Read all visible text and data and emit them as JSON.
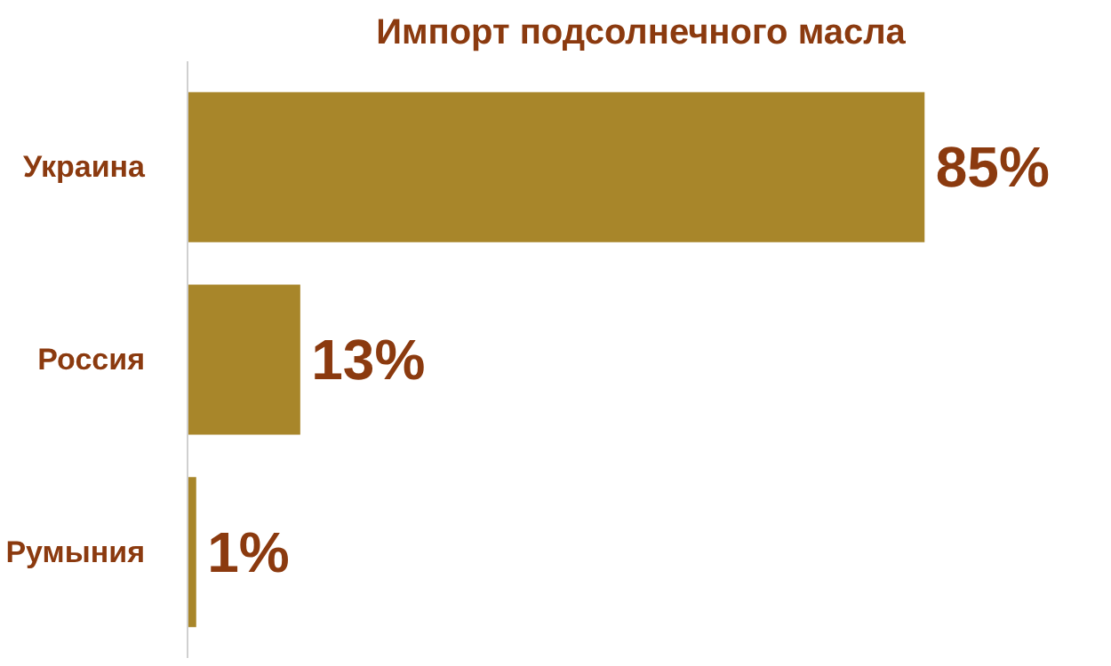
{
  "chart_data": {
    "type": "bar",
    "orientation": "horizontal",
    "title": "Импорт подсолнечного масла",
    "categories": [
      "Украина",
      "Россия",
      "Румыния"
    ],
    "values": [
      85,
      13,
      1
    ],
    "value_labels": [
      "85%",
      "13%",
      "1%"
    ],
    "color": "#a8862a"
  }
}
